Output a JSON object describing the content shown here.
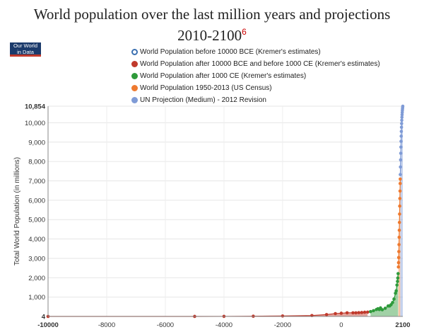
{
  "header": {
    "title_line1": "World population over the last million years and projections",
    "title_line2": "2010-2100",
    "title_footnote": "6",
    "logo_line1": "Our World",
    "logo_line2": "in Data"
  },
  "legend": [
    {
      "label": "World Population before 10000 BCE (Kremer's estimates)",
      "color": "#3a6fb0",
      "hollow": true
    },
    {
      "label": "World Population after 10000 BCE and before 1000 CE (Kremer's estimates)",
      "color": "#c0392b",
      "hollow": false
    },
    {
      "label": "World Population after 1000 CE (Kremer's estimates)",
      "color": "#2e9a3a",
      "hollow": false
    },
    {
      "label": "World Population 1950-2013 (US Census)",
      "color": "#ee7a30",
      "hollow": false
    },
    {
      "label": "UN Projection (Medium) - 2012 Revision",
      "color": "#7f9bd6",
      "hollow": false
    }
  ],
  "chart_data": {
    "type": "area",
    "title": "World population over the last million years and projections 2010-2100",
    "xlabel": "",
    "ylabel": "Total World Population (in millions)",
    "xlim": [
      -10000,
      2100
    ],
    "ylim": [
      4,
      10854
    ],
    "x_ticks": [
      {
        "value": -10000,
        "label": "-10000",
        "bold": true
      },
      {
        "value": -8000,
        "label": "-8000",
        "bold": false
      },
      {
        "value": -6000,
        "label": "-6000",
        "bold": false
      },
      {
        "value": -4000,
        "label": "-4000",
        "bold": false
      },
      {
        "value": -2000,
        "label": "-2000",
        "bold": false
      },
      {
        "value": 0,
        "label": "0",
        "bold": false
      },
      {
        "value": 2100,
        "label": "2100",
        "bold": true
      }
    ],
    "y_ticks": [
      {
        "value": 4,
        "label": "4",
        "bold": true
      },
      {
        "value": 1000,
        "label": "1,000",
        "bold": false
      },
      {
        "value": 2000,
        "label": "2,000",
        "bold": false
      },
      {
        "value": 3000,
        "label": "3,000",
        "bold": false
      },
      {
        "value": 4000,
        "label": "4,000",
        "bold": false
      },
      {
        "value": 5000,
        "label": "5,000",
        "bold": false
      },
      {
        "value": 6000,
        "label": "6,000",
        "bold": false
      },
      {
        "value": 7000,
        "label": "7,000",
        "bold": false
      },
      {
        "value": 8000,
        "label": "8,000",
        "bold": false
      },
      {
        "value": 9000,
        "label": "9,000",
        "bold": false
      },
      {
        "value": 10000,
        "label": "10,000",
        "bold": false
      },
      {
        "value": 10854,
        "label": "10,854",
        "bold": true
      }
    ],
    "series": [
      {
        "name": "World Population after 10000 BCE and before 1000 CE (Kremer's estimates)",
        "color": "#c0392b",
        "points": [
          [
            -10000,
            4
          ],
          [
            -5000,
            5
          ],
          [
            -4000,
            7
          ],
          [
            -3000,
            14
          ],
          [
            -2000,
            27
          ],
          [
            -1000,
            50
          ],
          [
            -500,
            100
          ],
          [
            -200,
            150
          ],
          [
            1,
            170
          ],
          [
            200,
            190
          ],
          [
            400,
            190
          ],
          [
            500,
            190
          ],
          [
            600,
            200
          ],
          [
            700,
            207
          ],
          [
            800,
            220
          ],
          [
            900,
            226
          ]
        ]
      },
      {
        "name": "World Population after 1000 CE (Kremer's estimates)",
        "color": "#2e9a3a",
        "points": [
          [
            1000,
            254
          ],
          [
            1100,
            301
          ],
          [
            1200,
            360
          ],
          [
            1250,
            400
          ],
          [
            1300,
            360
          ],
          [
            1340,
            443
          ],
          [
            1400,
            350
          ],
          [
            1500,
            425
          ],
          [
            1600,
            545
          ],
          [
            1650,
            545
          ],
          [
            1700,
            610
          ],
          [
            1750,
            720
          ],
          [
            1800,
            900
          ],
          [
            1850,
            1200
          ],
          [
            1875,
            1325
          ],
          [
            1900,
            1625
          ],
          [
            1920,
            1813
          ],
          [
            1930,
            1987
          ],
          [
            1940,
            2213
          ]
        ]
      },
      {
        "name": "World Population 1950-2013 (US Census)",
        "color": "#ee7a30",
        "points": [
          [
            1950,
            2557
          ],
          [
            1955,
            2782
          ],
          [
            1960,
            3043
          ],
          [
            1965,
            3350
          ],
          [
            1970,
            3712
          ],
          [
            1975,
            4089
          ],
          [
            1980,
            4451
          ],
          [
            1985,
            4855
          ],
          [
            1990,
            5287
          ],
          [
            1995,
            5700
          ],
          [
            2000,
            6090
          ],
          [
            2005,
            6474
          ],
          [
            2010,
            6864
          ],
          [
            2013,
            7095
          ]
        ]
      },
      {
        "name": "UN Projection (Medium) - 2012 Revision",
        "color": "#7f9bd6",
        "points": [
          [
            2015,
            7325
          ],
          [
            2020,
            7717
          ],
          [
            2025,
            8083
          ],
          [
            2030,
            8425
          ],
          [
            2035,
            8743
          ],
          [
            2040,
            9039
          ],
          [
            2045,
            9308
          ],
          [
            2050,
            9551
          ],
          [
            2055,
            9766
          ],
          [
            2060,
            9957
          ],
          [
            2065,
            10127
          ],
          [
            2070,
            10277
          ],
          [
            2075,
            10409
          ],
          [
            2080,
            10524
          ],
          [
            2085,
            10625
          ],
          [
            2090,
            10713
          ],
          [
            2095,
            10789
          ],
          [
            2100,
            10854
          ]
        ]
      }
    ]
  }
}
